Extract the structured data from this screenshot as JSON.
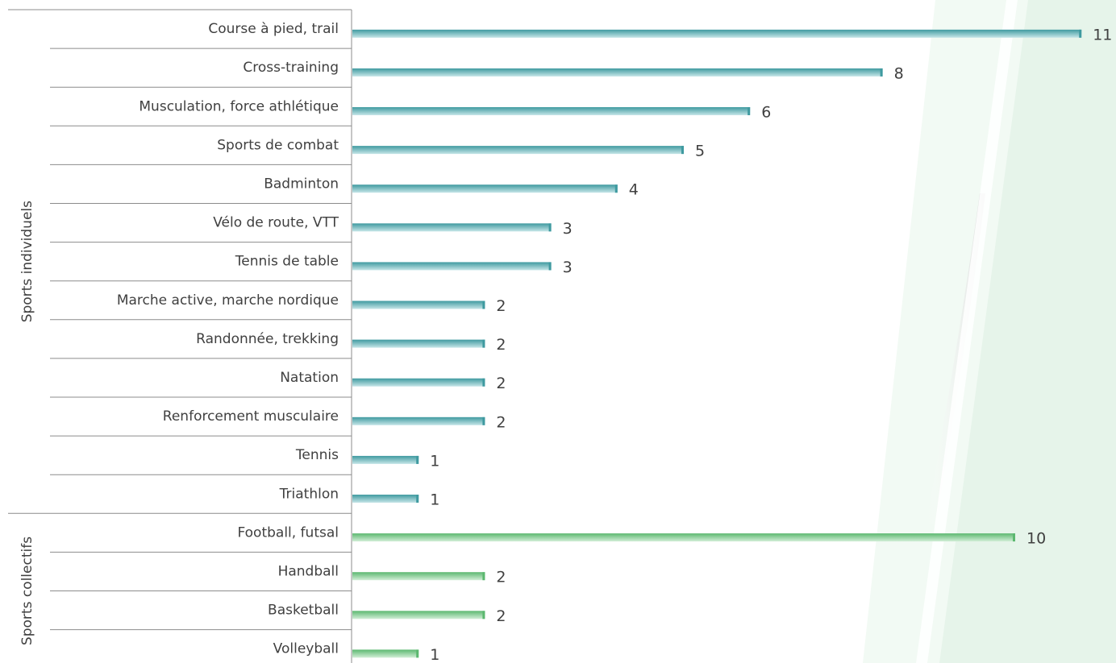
{
  "chart_data": {
    "type": "bar",
    "orientation": "horizontal",
    "xlim": [
      0,
      11
    ],
    "grid": false,
    "legend": "none",
    "colors": {
      "individual_bar": "#7fc4c6",
      "individual_bar_dark": "#3f9aa0",
      "collective_bar": "#9ed6a6",
      "collective_bar_dark": "#5cb870",
      "text": "#404040",
      "lines": "#808080",
      "decoration_green": "#e3f3e8",
      "decoration_grey": "#ececec"
    },
    "groups": [
      {
        "name": "Sports individuels",
        "color_key": "individual",
        "categories": [
          "Course à pied, trail",
          "Cross-training",
          "Musculation, force athlétique",
          "Sports de combat",
          "Badminton",
          "Vélo de route, VTT",
          "Tennis de table",
          "Marche active, marche nordique",
          "Randonnée, trekking",
          "Natation",
          "Renforcement musculaire",
          "Tennis",
          "Triathlon"
        ],
        "values": [
          11,
          8,
          6,
          5,
          4,
          3,
          3,
          2,
          2,
          2,
          2,
          1,
          1
        ]
      },
      {
        "name": "Sports collectifs",
        "color_key": "collective",
        "categories": [
          "Football, futsal",
          "Handball",
          "Basketball",
          "Volleyball"
        ],
        "values": [
          10,
          2,
          2,
          1
        ]
      }
    ]
  }
}
